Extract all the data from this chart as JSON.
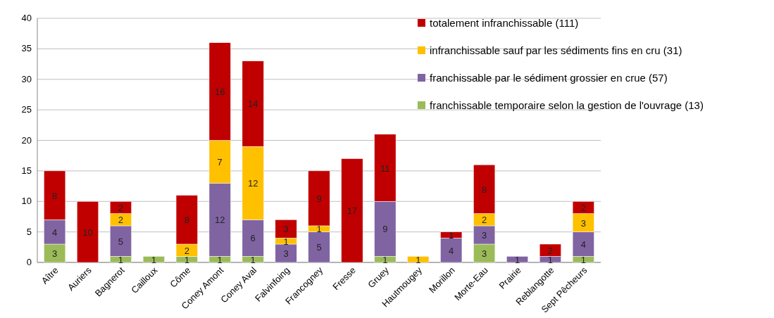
{
  "chart_data": {
    "type": "bar",
    "stacked": true,
    "data_labels": true,
    "grid": "y",
    "legend": "top right",
    "categories": [
      "Aître",
      "Auriers",
      "Bagnerot",
      "Cailloux",
      "Côme",
      "Coney Amont",
      "Coney Aval",
      "Falvinfoing",
      "Francogney",
      "Fresse",
      "Gruey",
      "Hautmougey",
      "Morillon",
      "Morte-Eau",
      "Prairie",
      "Reblangotte",
      "Sept Pêcheurs"
    ],
    "ylim": [
      0,
      40
    ],
    "yticks": [
      0,
      5,
      10,
      15,
      20,
      25,
      30,
      35,
      40
    ],
    "series": [
      {
        "name": "franchissable temporaire selon la gestion de l'ouvrage (13)",
        "color": "#9bbb59",
        "values": [
          3,
          null,
          1,
          1,
          1,
          1,
          1,
          null,
          null,
          null,
          1,
          null,
          null,
          3,
          null,
          null,
          1
        ]
      },
      {
        "name": "franchissable par le sédiment grossier en crue (57)",
        "color": "#8064a2",
        "values": [
          4,
          null,
          5,
          null,
          null,
          12,
          6,
          3,
          5,
          null,
          9,
          null,
          4,
          3,
          1,
          1,
          4
        ]
      },
      {
        "name": "infranchissable sauf par les sédiments fins en cru (31)",
        "color": "#ffc000",
        "values": [
          null,
          null,
          2,
          null,
          2,
          7,
          12,
          1,
          1,
          null,
          null,
          1,
          null,
          2,
          null,
          null,
          3
        ]
      },
      {
        "name": "totalement infranchissable (111)",
        "color": "#c00000",
        "values": [
          8,
          10,
          2,
          null,
          8,
          16,
          14,
          3,
          9,
          17,
          11,
          null,
          1,
          8,
          null,
          2,
          2
        ]
      }
    ]
  }
}
